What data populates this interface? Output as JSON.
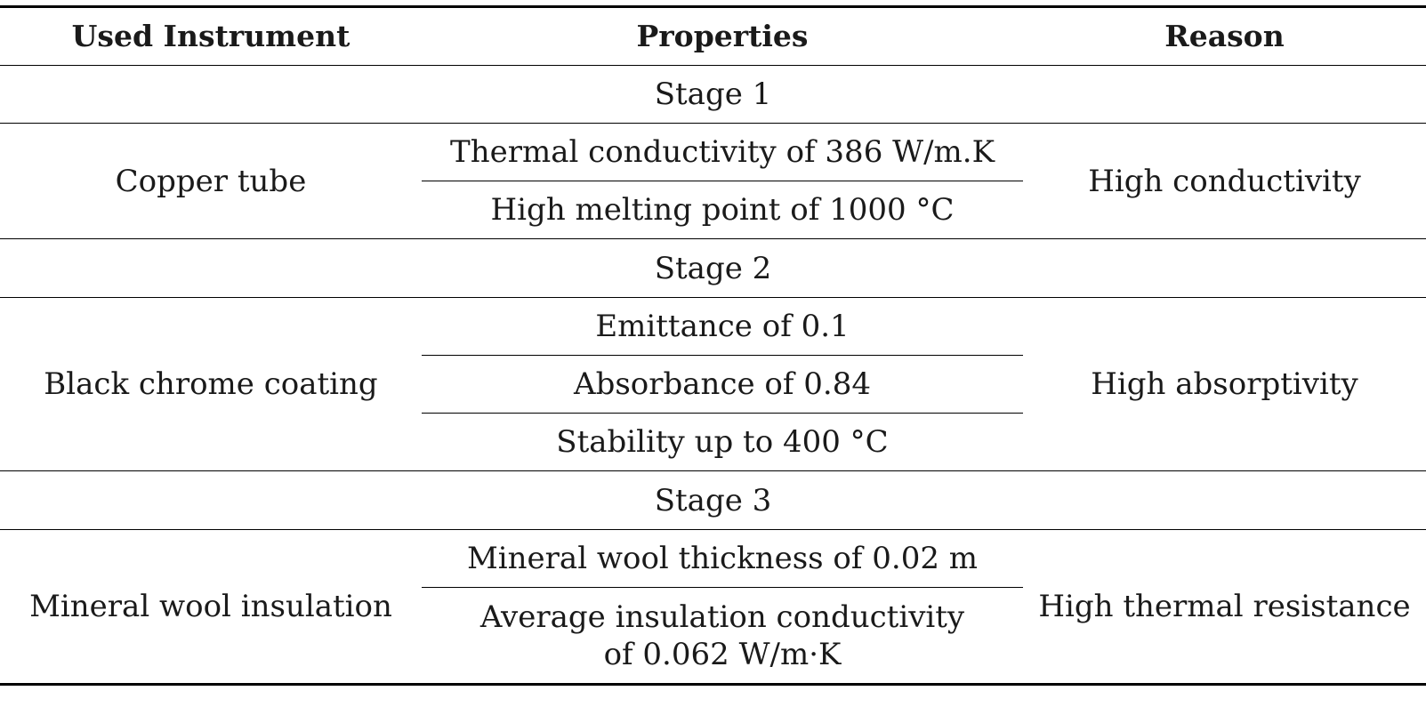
{
  "table": {
    "headers": [
      "Used Instrument",
      "Properties",
      "Reason"
    ],
    "stages": [
      {
        "label": "Stage 1",
        "instrument": "Copper tube",
        "properties": [
          "Thermal conductivity of 386 W/m.K",
          "High melting point of 1000 °C"
        ],
        "reason": "High conductivity"
      },
      {
        "label": "Stage 2",
        "instrument": "Black chrome coating",
        "properties": [
          "Emittance of 0.1",
          "Absorbance of 0.84",
          "Stability up to 400 °C"
        ],
        "reason": "High absorptivity"
      },
      {
        "label": "Stage 3",
        "instrument": "Mineral wool insulation",
        "properties": [
          "Mineral wool thickness of 0.02 m",
          "Average insulation conductivity of 0.062 W/m·K"
        ],
        "reason": "High thermal resistance"
      }
    ]
  }
}
